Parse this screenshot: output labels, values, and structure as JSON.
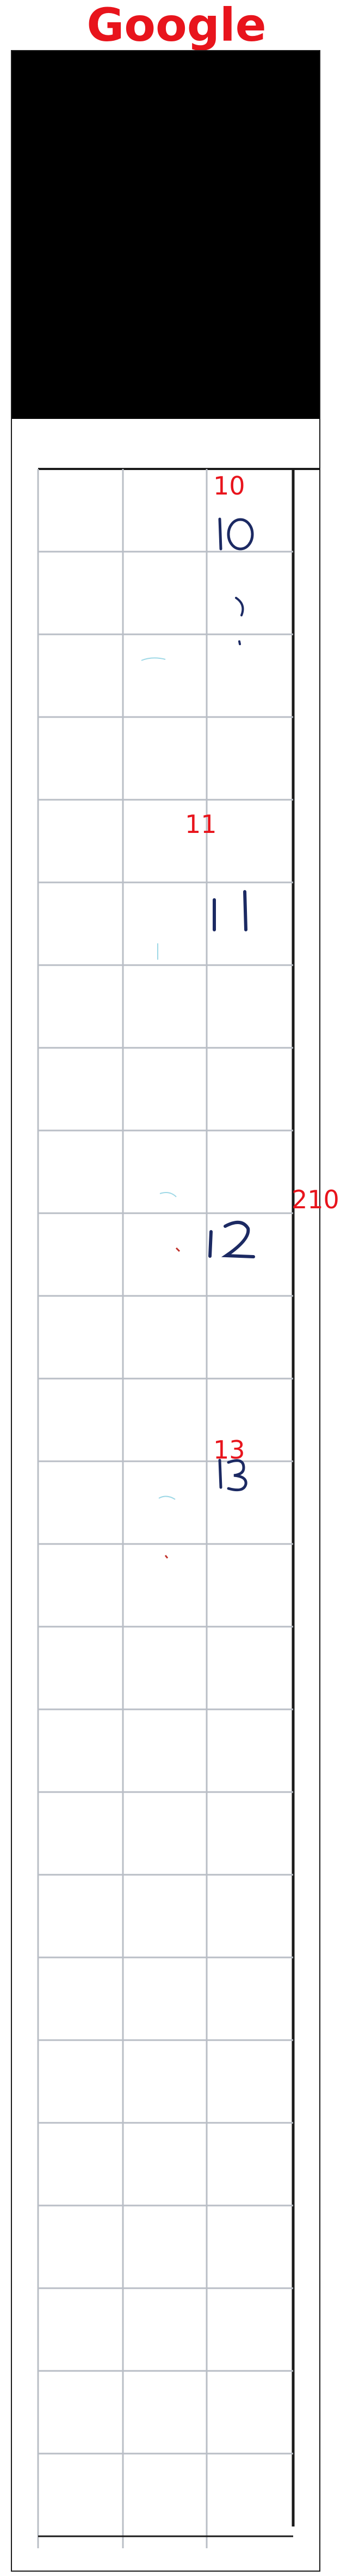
{
  "header": {
    "title": "Google"
  },
  "annotations": [
    {
      "id": "10",
      "text": "10"
    },
    {
      "id": "11",
      "text": "11"
    },
    {
      "id": "210",
      "text": "210"
    },
    {
      "id": "13",
      "text": "13"
    }
  ],
  "handwriting": [
    {
      "id": "10",
      "text": "10"
    },
    {
      "id": "11",
      "text": "11"
    },
    {
      "id": "12",
      "text": "12"
    },
    {
      "id": "13",
      "text": "13"
    }
  ],
  "colors": {
    "title": "#e8141c",
    "annotation": "#e8141c",
    "ink": "#1c2a63",
    "grid": "#b9bec6",
    "frame": "#1a1a1a",
    "cover": "#000000"
  }
}
